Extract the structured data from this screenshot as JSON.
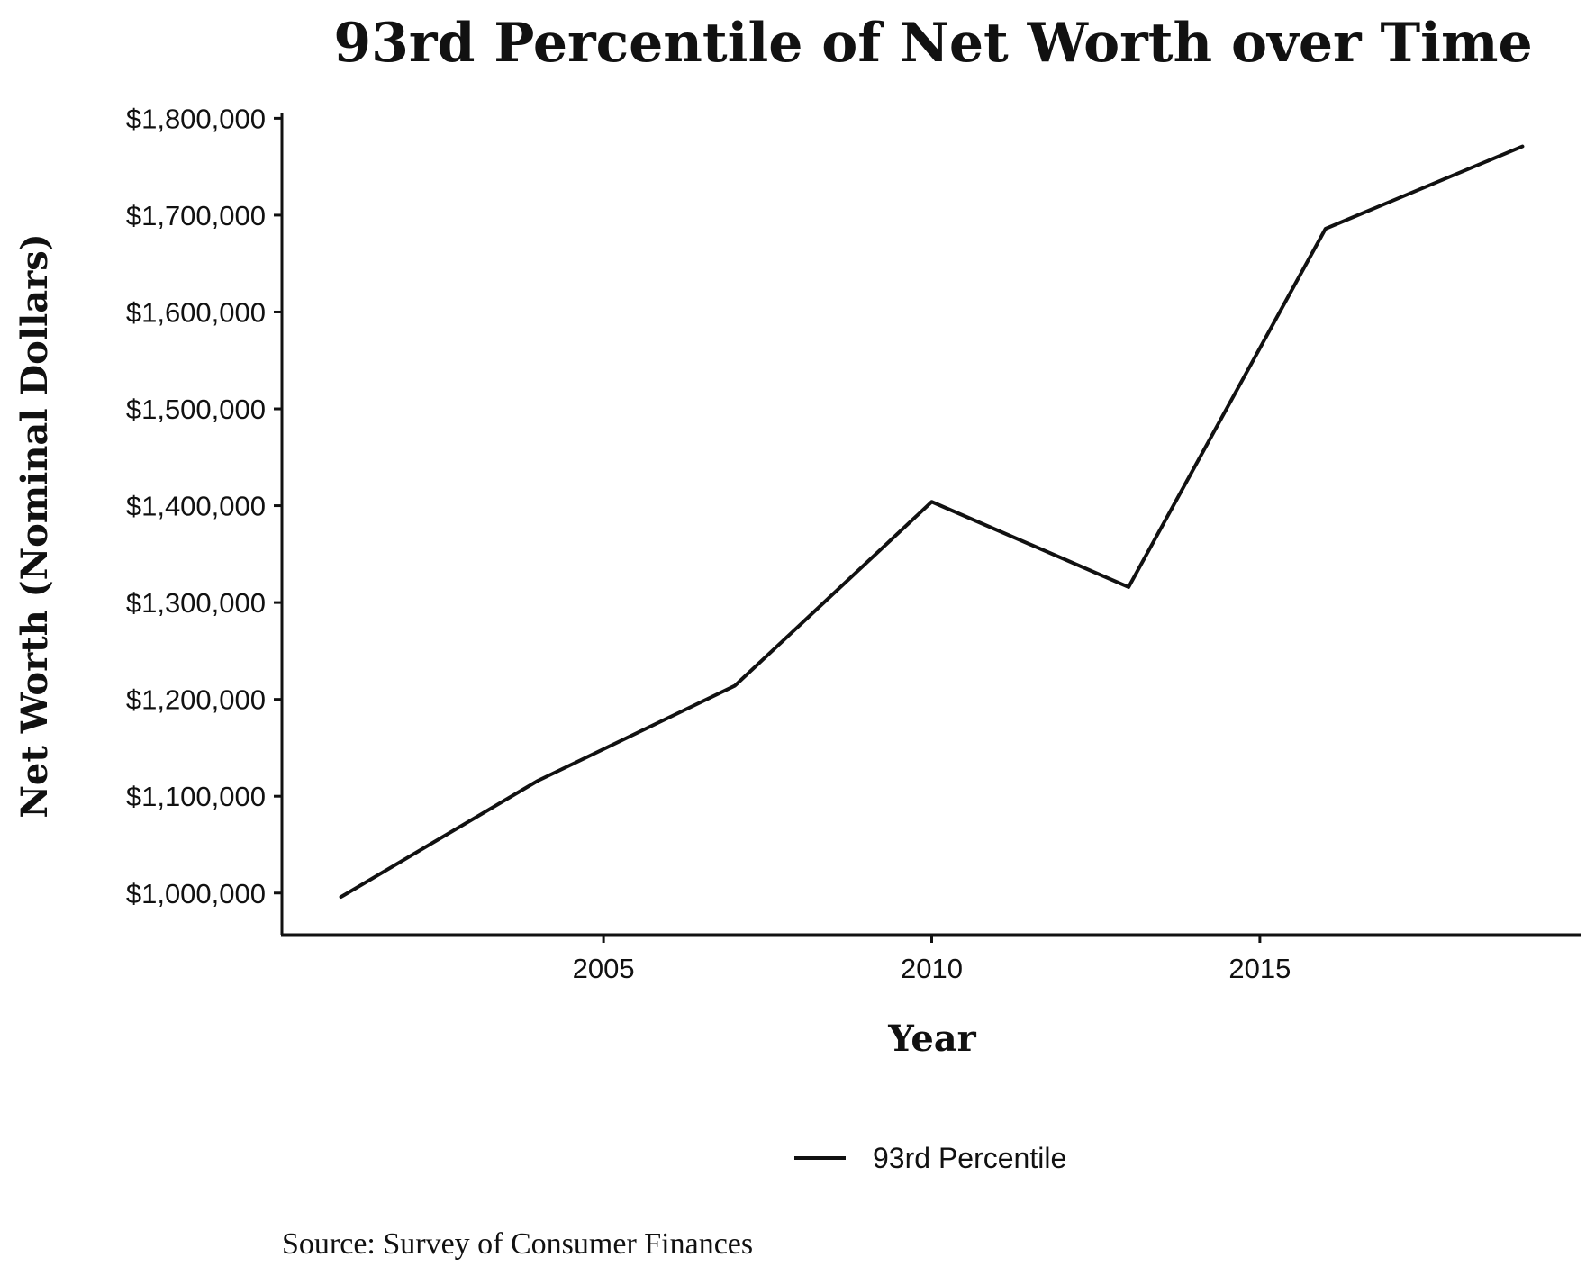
{
  "chart_data": {
    "type": "line",
    "title": "93rd Percentile of Net Worth over Time",
    "xlabel": "Year",
    "ylabel": "Net Worth (Nominal Dollars)",
    "source": "Source: Survey of Consumer Finances",
    "xlim": [
      2000.1,
      2019.9
    ],
    "ylim": [
      957000,
      1805000
    ],
    "x_ticks": [
      2005,
      2010,
      2015
    ],
    "y_ticks": [
      1000000,
      1100000,
      1200000,
      1300000,
      1400000,
      1500000,
      1600000,
      1700000,
      1800000
    ],
    "y_tick_labels": [
      "$1,000,000",
      "$1,100,000",
      "$1,200,000",
      "$1,300,000",
      "$1,400,000",
      "$1,500,000",
      "$1,600,000",
      "$1,700,000",
      "$1,800,000"
    ],
    "grid": false,
    "legend_position": "bottom",
    "series": [
      {
        "name": "93rd Percentile",
        "color": "#111111",
        "x": [
          2001,
          2004,
          2007,
          2010,
          2013,
          2016,
          2019
        ],
        "y": [
          996000,
          1116000,
          1214000,
          1404000,
          1316000,
          1686000,
          1771000
        ]
      }
    ]
  }
}
